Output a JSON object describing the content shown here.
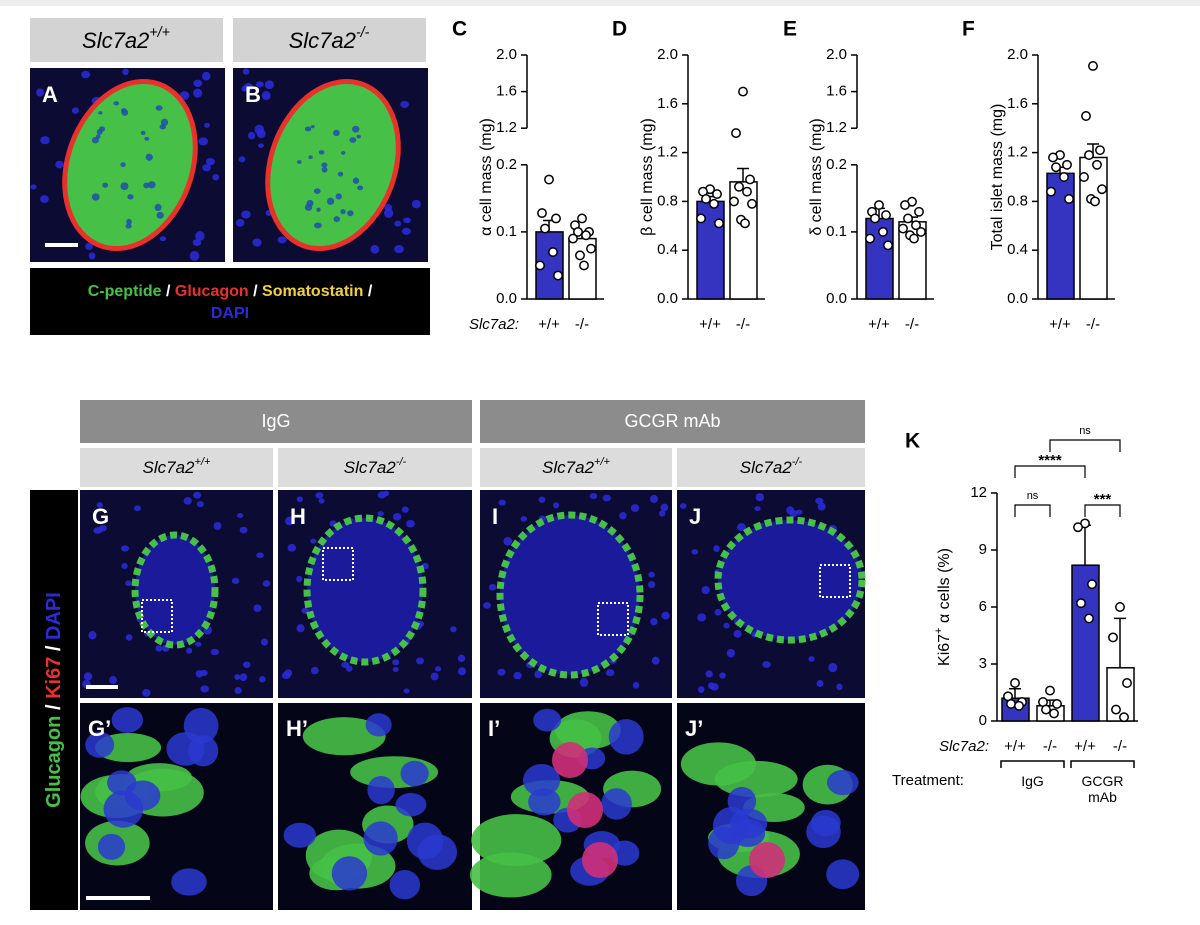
{
  "figure": {
    "top_images": {
      "columns": [
        {
          "gene": "Slc7a2",
          "genotype": "+/+",
          "label": "A"
        },
        {
          "gene": "Slc7a2",
          "genotype": "-/-",
          "label": "B"
        }
      ],
      "stain_legend": {
        "separator": "/",
        "items": [
          {
            "text": "C-peptide",
            "color": "#46c046"
          },
          {
            "text": "Glucagon",
            "color": "#e8312a"
          },
          {
            "text": "Somatostatin",
            "color": "#f2d23c"
          },
          {
            "text": "DAPI",
            "color": "#2b2bdc"
          }
        ]
      }
    },
    "bottom_images": {
      "treatments": [
        "IgG",
        "GCGR mAb"
      ],
      "columns": [
        {
          "gene": "Slc7a2",
          "genotype": "+/+",
          "label": "G",
          "zoom_label": "G’"
        },
        {
          "gene": "Slc7a2",
          "genotype": "-/-",
          "label": "H",
          "zoom_label": "H’"
        },
        {
          "gene": "Slc7a2",
          "genotype": "+/+",
          "label": "I",
          "zoom_label": "I’"
        },
        {
          "gene": "Slc7a2",
          "genotype": "-/-",
          "label": "J",
          "zoom_label": "J’"
        }
      ],
      "stain_legend": {
        "separator": "/",
        "items": [
          {
            "text": "Glucagon",
            "color": "#46c046"
          },
          {
            "text": "Ki67",
            "color": "#e8312a"
          },
          {
            "text": "DAPI",
            "color": "#2b2bdc"
          }
        ]
      }
    }
  },
  "chart_data": [
    {
      "type": "bar",
      "panel": "C",
      "ylabel": [
        {
          "text": "α cell mass (mg)"
        }
      ],
      "xlabel": "Slc7a2:",
      "categories": [
        "+/+",
        "-/-"
      ],
      "colors": [
        "#3434c0",
        "#ffffff"
      ],
      "values": [
        0.1,
        0.09
      ],
      "errors": [
        0.017,
        0.008
      ],
      "points": [
        [
          0.178,
          0.128,
          0.12,
          0.105,
          0.07,
          0.05,
          0.035
        ],
        [
          0.12,
          0.11,
          0.1,
          0.1,
          0.095,
          0.09,
          0.075,
          0.065,
          0.05
        ]
      ],
      "ylim": [
        0,
        0.2
      ],
      "yticks": [
        {
          "value": 0,
          "label": "0.0"
        },
        0.1,
        0.2
      ],
      "axis_break": {
        "ylim": [
          1.2,
          2
        ],
        "yticks": [
          1.2,
          1.6,
          {
            "value": 2,
            "label": "2.0"
          }
        ]
      }
    },
    {
      "type": "bar",
      "panel": "D",
      "ylabel": [
        {
          "text": "β cell mass (mg)"
        }
      ],
      "categories": [
        "+/+",
        "-/-"
      ],
      "colors": [
        "#3434c0",
        "#ffffff"
      ],
      "values": [
        0.8,
        0.96
      ],
      "errors": [
        0.04,
        0.11
      ],
      "points": [
        [
          0.9,
          0.88,
          0.86,
          0.82,
          0.78,
          0.66,
          0.62
        ],
        [
          1.7,
          1.36,
          0.98,
          0.92,
          0.88,
          0.8,
          0.78,
          0.65,
          0.62
        ]
      ],
      "ylim": [
        0,
        2
      ],
      "yticks": [
        {
          "value": 0,
          "label": "0.0"
        },
        0.4,
        0.8,
        1.2,
        1.6,
        {
          "value": 2,
          "label": "2.0"
        }
      ]
    },
    {
      "type": "bar",
      "panel": "E",
      "ylabel": [
        {
          "text": "δ cell mass (mg)"
        }
      ],
      "categories": [
        "+/+",
        "-/-"
      ],
      "colors": [
        "#3434c0",
        "#ffffff"
      ],
      "values": [
        0.12,
        0.115
      ],
      "errors": [
        0.015,
        0.007
      ],
      "points": [
        [
          0.14,
          0.13,
          0.125,
          0.12,
          0.1,
          0.09,
          0.08
        ],
        [
          0.145,
          0.14,
          0.13,
          0.12,
          0.11,
          0.105,
          0.1,
          0.095,
          0.09
        ]
      ],
      "ylim": [
        0,
        0.2
      ],
      "yticks": [
        {
          "value": 0,
          "label": "0.0"
        },
        0.1,
        0.2
      ],
      "axis_break": {
        "ylim": [
          1.2,
          2
        ],
        "yticks": [
          1.2,
          1.6,
          {
            "value": 2,
            "label": "2.0"
          }
        ]
      }
    },
    {
      "type": "bar",
      "panel": "F",
      "ylabel": [
        {
          "text": "Total islet mass (mg)"
        }
      ],
      "categories": [
        "+/+",
        "-/-"
      ],
      "colors": [
        "#3434c0",
        "#ffffff"
      ],
      "values": [
        1.03,
        1.16
      ],
      "errors": [
        0.05,
        0.11
      ],
      "points": [
        [
          1.18,
          1.16,
          1.1,
          1.08,
          1.0,
          0.88,
          0.82
        ],
        [
          1.91,
          1.5,
          1.22,
          1.18,
          1.1,
          1.0,
          0.9,
          0.82,
          0.8
        ]
      ],
      "ylim": [
        0,
        2
      ],
      "yticks": [
        {
          "value": 0,
          "label": "0.0"
        },
        0.4,
        0.8,
        1.2,
        1.6,
        {
          "value": 2,
          "label": "2.0"
        }
      ]
    },
    {
      "type": "bar",
      "panel": "K",
      "ylabel": [
        {
          "text": "Ki67"
        },
        {
          "text": "+",
          "sup": true
        },
        {
          "text": " α cells (%)"
        }
      ],
      "xlabel": "Slc7a2:",
      "group_title": "Treatment:",
      "groups": [
        {
          "label": "IgG",
          "span": [
            0,
            1
          ]
        },
        {
          "label": "GCGR mAb",
          "span": [
            2,
            3
          ]
        }
      ],
      "categories": [
        "+/+",
        "-/-",
        "+/+",
        "-/-"
      ],
      "colors": [
        "#3434c0",
        "#ffffff",
        "#3434c0",
        "#ffffff"
      ],
      "values": [
        1.2,
        0.8,
        8.2,
        2.8
      ],
      "errors": [
        0.5,
        0.3,
        2.1,
        2.6
      ],
      "points": [
        [
          2.0,
          1.3,
          1.0,
          0.9,
          0.8
        ],
        [
          1.6,
          1.0,
          0.9,
          0.6,
          0.4
        ],
        [
          10.4,
          10.2,
          7.2,
          6.2,
          5.4
        ],
        [
          6.0,
          4.4,
          2.0,
          0.6,
          0.2
        ]
      ],
      "ylim": [
        0,
        12
      ],
      "yticks": [
        0,
        3,
        6,
        9,
        12
      ],
      "significance": [
        {
          "pair": [
            0,
            1
          ],
          "label": "ns"
        },
        {
          "pair": [
            0,
            2
          ],
          "label": "****"
        },
        {
          "pair": [
            2,
            3
          ],
          "label": "***"
        },
        {
          "pair": [
            1,
            3
          ],
          "label": "ns"
        }
      ]
    }
  ]
}
